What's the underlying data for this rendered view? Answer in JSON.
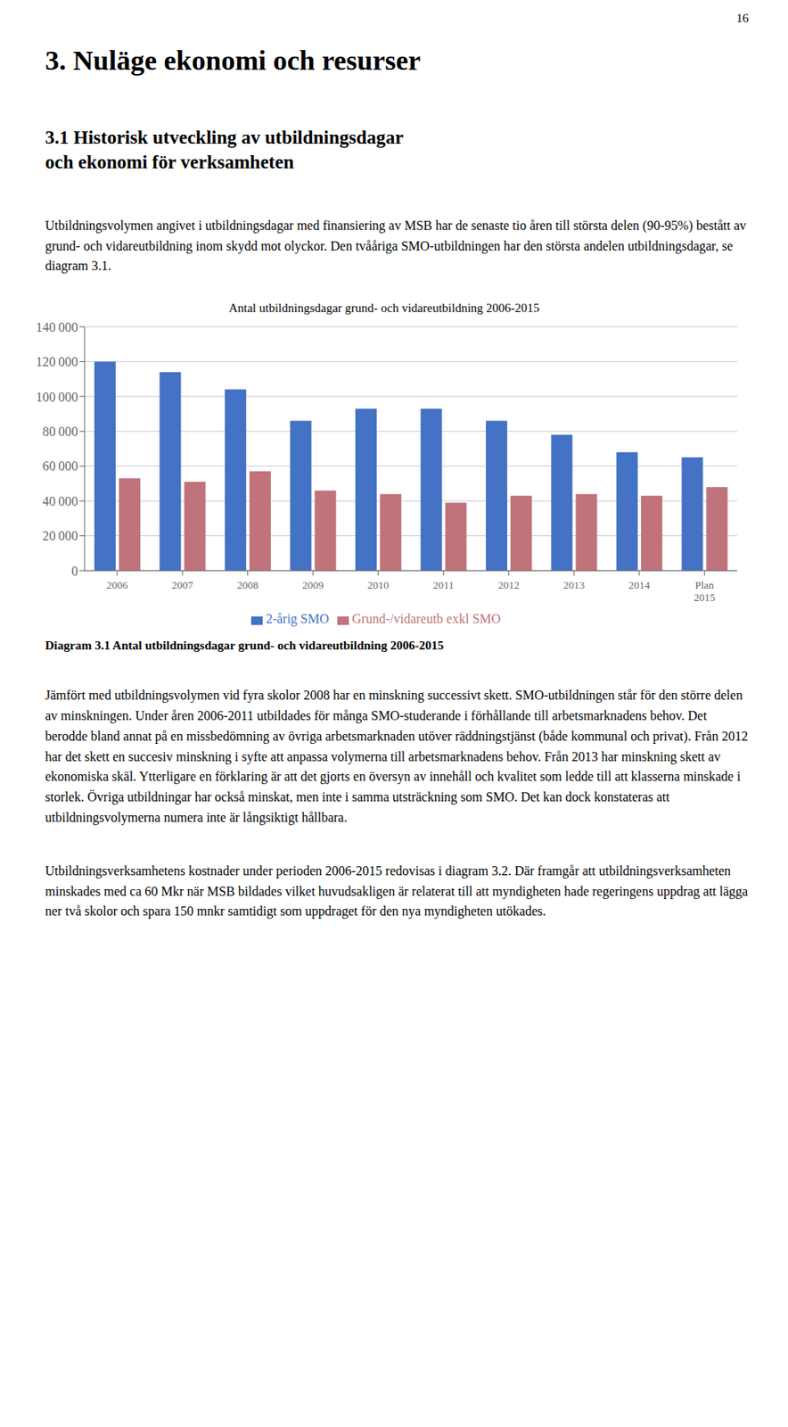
{
  "chart_data": {
    "type": "bar",
    "title": "Antal utbildningsdagar grund- och vidareutbildning 2006-2015",
    "categories": [
      "2006",
      "2007",
      "2008",
      "2009",
      "2010",
      "2011",
      "2012",
      "2013",
      "2014",
      "Plan\n2015"
    ],
    "series": [
      {
        "name": "2-årig SMO",
        "color": "#4472C4",
        "values": [
          120000,
          114000,
          104000,
          86000,
          93000,
          93000,
          86000,
          78000,
          68000,
          65000
        ]
      },
      {
        "name": "Grund-/vidareutb exkl SMO",
        "color": "#C0737A",
        "values": [
          53000,
          51000,
          57000,
          46000,
          44000,
          39000,
          43000,
          44000,
          43000,
          48000
        ]
      }
    ],
    "ylim": [
      0,
      140000
    ],
    "yticks": [
      0,
      {
        "value": 20000,
        "label": "20 000"
      },
      {
        "value": 40000,
        "label": "40 000"
      },
      {
        "value": 60000,
        "label": "60 000"
      },
      {
        "value": 80000,
        "label": "80 000"
      },
      {
        "value": 100000,
        "label": "100 000"
      },
      {
        "value": 120000,
        "label": "120 000"
      },
      {
        "value": 140000,
        "label": "140 000"
      }
    ],
    "grid": true,
    "legend": "bottom",
    "annotations": [
      "16",
      "3.  Nuläge ekonomi och resurser",
      "3.1  Historisk utveckling av utbildningsdagar\noch ekonomi för verksamheten",
      "Utbildningsvolymen angivet i utbildningsdagar med finansiering av MSB har de senaste tio åren till största delen (90-95%) bestått av grund- och vidareutbildning inom skydd mot olyckor. Den tvååriga SMO-utbildningen har den största andelen utbildningsdagar, se diagram 3.1.",
      "Diagram 3.1 Antal utbildningsdagar grund- och vidareutbildning 2006-2015",
      "Jämfört med utbildningsvolymen vid fyra skolor 2008 har en minskning successivt skett. SMO-utbildningen står för den större delen av minskningen. Under åren 2006-2011 utbildades för många SMO-studerande i förhållande till arbetsmarknadens behov. Det berodde bland annat på en missbedömning av övriga arbetsmarknaden utöver räddningstjänst (både kommunal och privat). Från 2012 har det skett en succesiv minskning i syfte att anpassa volymerna till arbetsmarknadens behov. Från 2013 har minskning skett av ekonomiska skäl. Ytterligare en förklaring är att det gjorts en översyn av innehåll och kvalitet som ledde till att klasserna minskade i storlek. Övriga utbildningar har också minskat, men inte i samma utsträckning som SMO. Det kan dock konstateras att utbildningsvolymerna numera inte är långsiktigt hållbara.",
      "Utbildningsverksamhetens kostnader under perioden 2006-2015 redovisas i diagram 3.2. Där framgår att utbildningsverksamheten minskades med ca 60 Mkr när MSB bildades vilket huvudsakligen är relaterat till att myndigheten hade regeringens uppdrag att lägga ner två skolor och spara 150 mnkr samtidigt som uppdraget för den nya myndigheten utökades."
    ]
  }
}
